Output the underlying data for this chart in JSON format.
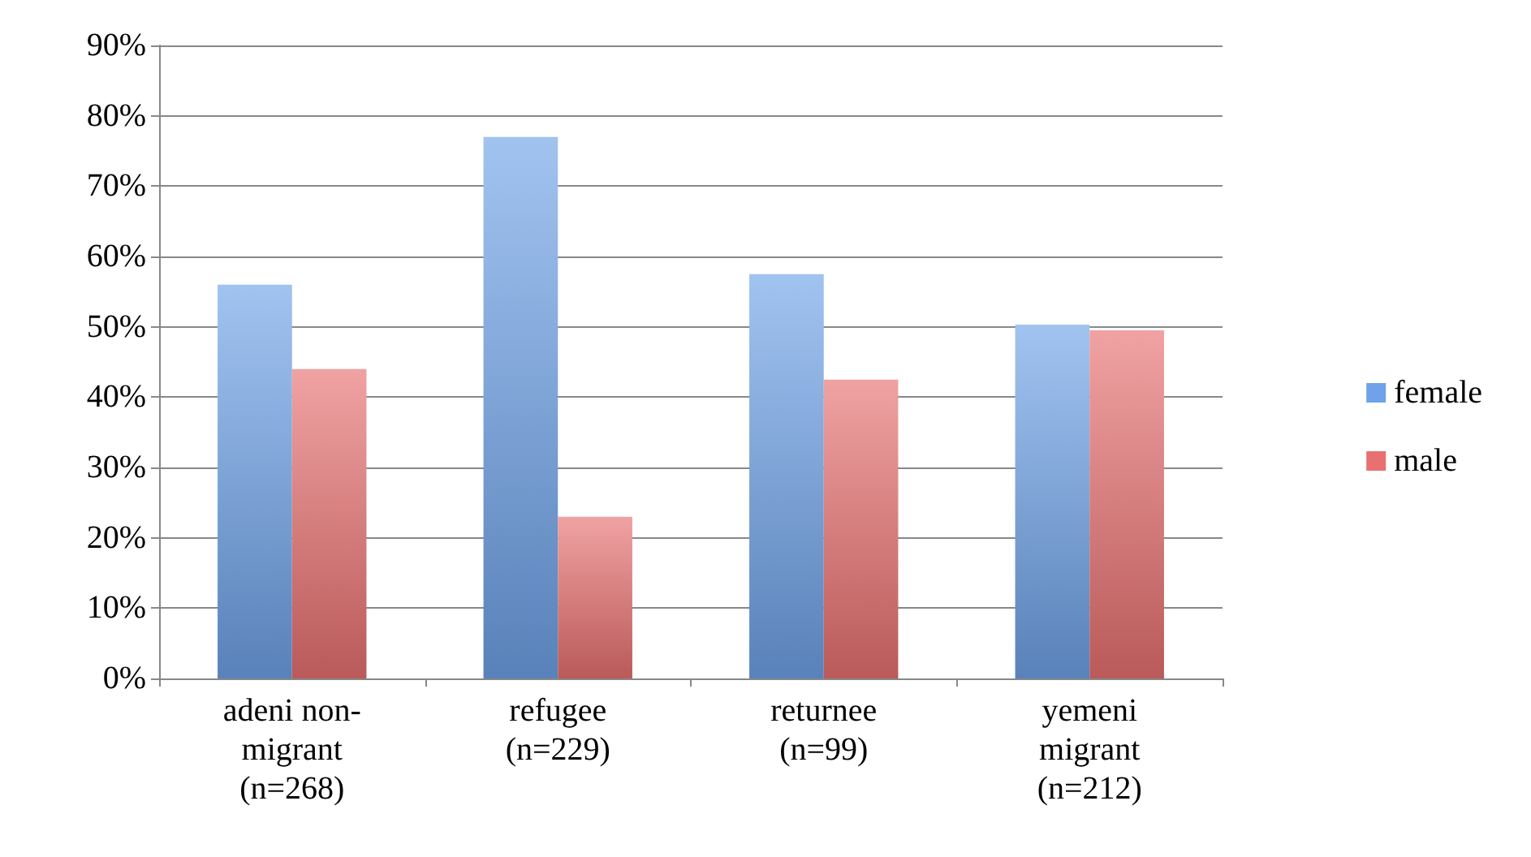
{
  "chart_data": {
    "type": "bar",
    "categories": [
      "adeni non-\nmigrant\n(n=268)",
      "refugee\n(n=229)",
      "returnee\n(n=99)",
      "yemeni\nmigrant\n(n=212)"
    ],
    "series": [
      {
        "name": "female",
        "color": "#6fa2e8",
        "values": [
          56,
          77,
          57.5,
          50.3
        ]
      },
      {
        "name": "male",
        "color": "#e87070",
        "values": [
          44,
          23,
          42.5,
          49.5
        ]
      }
    ],
    "ylim": [
      0,
      90
    ],
    "yticks": [
      {
        "value": 0,
        "label": "0%"
      },
      {
        "value": 10,
        "label": "10%"
      },
      {
        "value": 20,
        "label": "20%"
      },
      {
        "value": 30,
        "label": "30%"
      },
      {
        "value": 40,
        "label": "40%"
      },
      {
        "value": 50,
        "label": "50%"
      },
      {
        "value": 60,
        "label": "60%"
      },
      {
        "value": 70,
        "label": "70%"
      },
      {
        "value": 80,
        "label": "80%"
      },
      {
        "value": 90,
        "label": "90%"
      }
    ],
    "grid": "y",
    "legend": "right"
  }
}
